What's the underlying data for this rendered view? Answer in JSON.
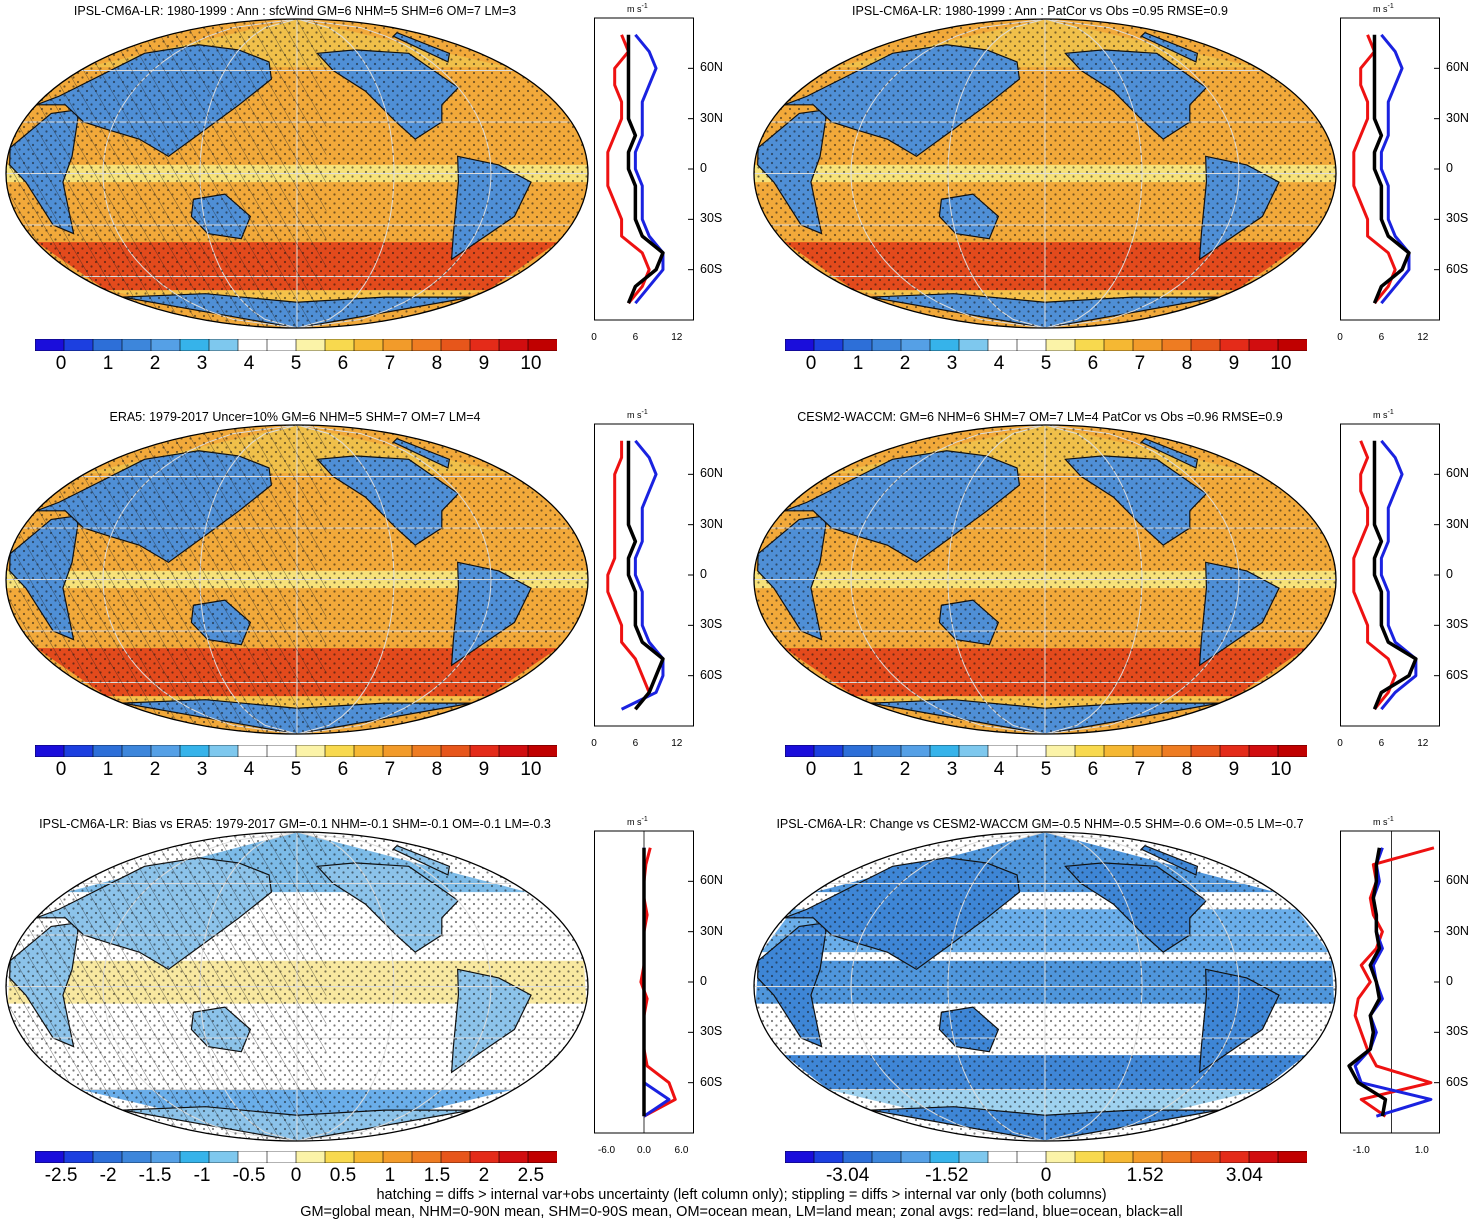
{
  "palette": [
    "#1a0ddb",
    "#1c3fe0",
    "#2d6fd8",
    "#3d86db",
    "#55a0e6",
    "#36b3ea",
    "#7ec8ee",
    "#ffffff",
    "#ffffff",
    "#fbf3a8",
    "#f8d94e",
    "#f5b833",
    "#f29b2a",
    "#ee7c22",
    "#e7561b",
    "#e42b19",
    "#d10d0f",
    "#c00000"
  ],
  "map_colors": {
    "ocean": "#f2a93a",
    "land": "#4f8fd6",
    "low_ocean": "#6aaeea",
    "high_ocean": "#e34a1c",
    "coast": "#111111",
    "grid": "#dddddd"
  },
  "zonal_colors": {
    "land": "#ee1111",
    "ocean": "#1a22e0",
    "all": "#000000"
  },
  "zonal_unit": "m s",
  "zonal_unit_exp": "-1",
  "panels": [
    {
      "id": "p1",
      "title": "IPSL-CM6A-LR: 1980-1999 : Ann : sfcWind GM=6 NHM=5 SHM=6 OM=7 LM=3",
      "colorbar_labels": [
        "0",
        "1",
        "2",
        "3",
        "4",
        "5",
        "6",
        "7",
        "8",
        "9",
        "10"
      ],
      "zonal_ticks": [
        "0",
        "6",
        "12"
      ],
      "zonal_range": [
        0,
        14.5
      ],
      "lat_labels": [
        "60N",
        "30N",
        "0",
        "30S",
        "60S"
      ],
      "lat_values": [
        60,
        30,
        0,
        -30,
        -60
      ],
      "hatch": true
    },
    {
      "id": "p2",
      "title": "IPSL-CM6A-LR: 1980-1999 : Ann : PatCor vs Obs =0.95 RMSE=0.9",
      "colorbar_labels": [
        "0",
        "1",
        "2",
        "3",
        "4",
        "5",
        "6",
        "7",
        "8",
        "9",
        "10"
      ],
      "zonal_ticks": [
        "0",
        "6",
        "12"
      ],
      "zonal_range": [
        0,
        14.5
      ],
      "lat_labels": [
        "60N",
        "30N",
        "0",
        "30S",
        "60S"
      ],
      "lat_values": [
        60,
        30,
        0,
        -30,
        -60
      ],
      "hatch": false
    },
    {
      "id": "p3",
      "title": "ERA5: 1979-2017 Uncer=10% GM=6 NHM=5 SHM=7 OM=7 LM=4",
      "colorbar_labels": [
        "0",
        "1",
        "2",
        "3",
        "4",
        "5",
        "6",
        "7",
        "8",
        "9",
        "10"
      ],
      "zonal_ticks": [
        "0",
        "6",
        "12"
      ],
      "zonal_range": [
        0,
        14.5
      ],
      "lat_labels": [
        "60N",
        "30N",
        "0",
        "30S",
        "60S"
      ],
      "lat_values": [
        60,
        30,
        0,
        -30,
        -60
      ],
      "hatch": true
    },
    {
      "id": "p4",
      "title": "CESM2-WACCM: GM=6 NHM=6 SHM=7 OM=7 LM=4 PatCor vs Obs =0.96 RMSE=0.9",
      "colorbar_labels": [
        "0",
        "1",
        "2",
        "3",
        "4",
        "5",
        "6",
        "7",
        "8",
        "9",
        "10"
      ],
      "zonal_ticks": [
        "0",
        "6",
        "12"
      ],
      "zonal_range": [
        0,
        14.5
      ],
      "lat_labels": [
        "60N",
        "30N",
        "0",
        "30S",
        "60S"
      ],
      "lat_values": [
        60,
        30,
        0,
        -30,
        -60
      ],
      "hatch": false
    },
    {
      "id": "p5",
      "title": "IPSL-CM6A-LR: Bias vs ERA5: 1979-2017 GM=-0.1 NHM=-0.1 SHM=-0.1 OM=-0.1 LM=-0.3",
      "colorbar_labels": [
        "-2.5",
        "-2",
        "-1.5",
        "-1",
        "-0.5",
        "0",
        "0.5",
        "1",
        "1.5",
        "2",
        "2.5"
      ],
      "zonal_ticks": [
        "-6.0",
        "0.0",
        "6.0"
      ],
      "zonal_range": [
        -8,
        8
      ],
      "lat_labels": [
        "60N",
        "30N",
        "0",
        "30S",
        "60S"
      ],
      "lat_values": [
        60,
        30,
        0,
        -30,
        -60
      ],
      "hatch": true
    },
    {
      "id": "p6",
      "title": "IPSL-CM6A-LR: Change vs CESM2-WACCM GM=-0.5 NHM=-0.5 SHM=-0.6 OM=-0.5 LM=-0.7",
      "colorbar_labels": [
        "-3.04",
        "-1.52",
        "0",
        "1.52",
        "3.04"
      ],
      "zonal_ticks": [
        "-1.0",
        "1.0"
      ],
      "zonal_range": [
        -1.7,
        1.6
      ],
      "lat_labels": [
        "60N",
        "30N",
        "0",
        "30S",
        "60S"
      ],
      "lat_values": [
        60,
        30,
        0,
        -30,
        -60
      ],
      "hatch": false
    }
  ],
  "footer": [
    "hatching = diffs > internal var+obs uncertainty (left column only); stippling = diffs > internal var only (both columns)",
    "GM=global mean, NHM=0-90N mean, SHM=0-90S mean, OM=ocean mean, LM=land mean; zonal avgs: red=land, blue=ocean, black=all"
  ],
  "chart_data": [
    {
      "type": "heatmap",
      "title": "IPSL-CM6A-LR: 1980-1999 : Ann : sfcWind GM=6 NHM=5 SHM=6 OM=7 LM=3",
      "colorbar_range": [
        0,
        10
      ],
      "unit": "m s-1",
      "zonal_mean": {
        "lat": [
          80,
          70,
          60,
          50,
          40,
          30,
          20,
          10,
          0,
          -10,
          -20,
          -30,
          -40,
          -50,
          -60,
          -70,
          -80
        ],
        "land": [
          4,
          5,
          3,
          3,
          4,
          4,
          3,
          2,
          2,
          2,
          3,
          4,
          4,
          7,
          8,
          7,
          5
        ],
        "ocean": [
          6,
          8,
          9,
          8,
          7,
          7,
          7,
          6,
          6,
          7,
          7,
          7,
          8,
          10,
          10,
          8,
          6
        ],
        "all": [
          5,
          5,
          5,
          5,
          5,
          5,
          6,
          5,
          5,
          6,
          6,
          6,
          7,
          10,
          9,
          6,
          5
        ]
      }
    },
    {
      "type": "heatmap",
      "title": "IPSL-CM6A-LR: 1980-1999 : Ann : PatCor vs Obs =0.95 RMSE=0.9",
      "colorbar_range": [
        0,
        10
      ],
      "unit": "m s-1",
      "zonal_mean": {
        "lat": [
          80,
          70,
          60,
          50,
          40,
          30,
          20,
          10,
          0,
          -10,
          -20,
          -30,
          -40,
          -50,
          -60,
          -70,
          -80
        ],
        "land": [
          4,
          5,
          3,
          3,
          4,
          4,
          3,
          2,
          2,
          2,
          3,
          4,
          4,
          7,
          8,
          7,
          5
        ],
        "ocean": [
          6,
          8,
          9,
          8,
          7,
          7,
          7,
          6,
          6,
          7,
          7,
          7,
          8,
          10,
          10,
          8,
          6
        ],
        "all": [
          5,
          5,
          5,
          5,
          5,
          5,
          6,
          5,
          5,
          6,
          6,
          6,
          7,
          10,
          9,
          6,
          5
        ]
      }
    },
    {
      "type": "heatmap",
      "title": "ERA5: 1979-2017 Uncer=10% GM=6 NHM=5 SHM=7 OM=7 LM=4",
      "colorbar_range": [
        0,
        10
      ],
      "unit": "m s-1",
      "zonal_mean": {
        "lat": [
          80,
          70,
          60,
          50,
          40,
          30,
          20,
          10,
          0,
          -10,
          -20,
          -30,
          -40,
          -50,
          -60,
          -70,
          -80
        ],
        "land": [
          4,
          4,
          3,
          3,
          3,
          3,
          3,
          3,
          2,
          2,
          3,
          4,
          4,
          6,
          7,
          8,
          6
        ],
        "ocean": [
          6,
          8,
          9,
          8,
          7,
          7,
          7,
          6,
          6,
          7,
          7,
          7,
          8,
          10,
          10,
          9,
          4
        ],
        "all": [
          5,
          5,
          5,
          5,
          5,
          5,
          6,
          5,
          5,
          6,
          6,
          6,
          7,
          10,
          9,
          8,
          6
        ]
      }
    },
    {
      "type": "heatmap",
      "title": "CESM2-WACCM: GM=6 NHM=6 SHM=7 OM=7 LM=4 PatCor vs Obs =0.96 RMSE=0.9",
      "colorbar_range": [
        0,
        10
      ],
      "unit": "m s-1",
      "zonal_mean": {
        "lat": [
          80,
          70,
          60,
          50,
          40,
          30,
          20,
          10,
          0,
          -10,
          -20,
          -30,
          -40,
          -50,
          -60,
          -70,
          -80
        ],
        "land": [
          3,
          4,
          3,
          3,
          4,
          4,
          3,
          2,
          2,
          2,
          3,
          4,
          4,
          7,
          8,
          7,
          5
        ],
        "ocean": [
          6,
          8,
          9,
          8,
          7,
          7,
          7,
          6,
          6,
          7,
          7,
          7,
          8,
          11,
          11,
          8,
          6
        ],
        "all": [
          5,
          5,
          5,
          5,
          5,
          5,
          6,
          5,
          5,
          6,
          6,
          6,
          7,
          11,
          10,
          6,
          5
        ]
      }
    },
    {
      "type": "heatmap",
      "title": "IPSL-CM6A-LR: Bias vs ERA5: 1979-2017 GM=-0.1 NHM=-0.1 SHM=-0.1 OM=-0.1 LM=-0.3",
      "colorbar_range": [
        -2.75,
        2.75
      ],
      "unit": "m s-1",
      "zonal_mean": {
        "lat": [
          80,
          70,
          60,
          50,
          40,
          30,
          20,
          10,
          0,
          -10,
          -20,
          -30,
          -40,
          -50,
          -60,
          -70,
          -80
        ],
        "land": [
          1,
          0.3,
          0,
          0,
          0.5,
          0,
          0,
          0,
          -0.5,
          0.5,
          0,
          0,
          0,
          0.5,
          4,
          5,
          0
        ],
        "ocean": [
          0,
          0,
          0,
          0,
          0,
          0,
          0,
          0,
          0,
          0,
          0,
          0,
          0,
          0,
          0,
          4,
          0
        ],
        "all": [
          0,
          0,
          0,
          0,
          0,
          0,
          0,
          0,
          0,
          0,
          0,
          0,
          0,
          0,
          0,
          0,
          0
        ]
      }
    },
    {
      "type": "heatmap",
      "title": "IPSL-CM6A-LR: Change vs CESM2-WACCM GM=-0.5 NHM=-0.5 SHM=-0.6 OM=-0.5 LM=-0.7",
      "colorbar_range": [
        -4.0,
        4.0
      ],
      "unit": "m s-1",
      "zonal_mean": {
        "lat": [
          80,
          70,
          60,
          50,
          40,
          30,
          20,
          10,
          0,
          -10,
          -20,
          -30,
          -40,
          -50,
          -60,
          -70,
          -80
        ],
        "land": [
          1.4,
          -0.6,
          -0.5,
          -0.7,
          -0.6,
          -0.3,
          -0.5,
          -1.0,
          -0.7,
          -1.1,
          -1.2,
          -1.0,
          -0.8,
          -0.5,
          1.3,
          -1.0,
          -0.2
        ],
        "ocean": [
          -0.3,
          -0.5,
          -0.4,
          -0.6,
          -0.5,
          -0.5,
          -0.3,
          -0.6,
          -0.5,
          -0.3,
          -0.7,
          -0.5,
          -0.7,
          -1.2,
          -1.0,
          1.3,
          -0.5
        ],
        "all": [
          -0.4,
          -0.5,
          -0.5,
          -0.6,
          -0.5,
          -0.5,
          -0.4,
          -0.7,
          -0.5,
          -0.4,
          -0.7,
          -0.6,
          -0.7,
          -1.4,
          -1.1,
          -0.2,
          -0.3
        ]
      }
    }
  ]
}
